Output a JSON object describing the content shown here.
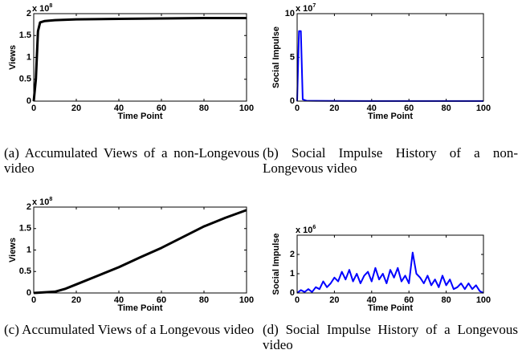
{
  "chart_data": [
    {
      "type": "line",
      "caption": "(a) Accumulated Views of a non-Longevous video",
      "xlabel": "Time Point",
      "ylabel": "Views",
      "y_multiplier": {
        "base": "x 10",
        "exponent": "8"
      },
      "x": [
        0,
        1,
        2,
        3,
        5,
        10,
        20,
        40,
        60,
        80,
        100
      ],
      "series": [
        {
          "color": "#000000",
          "values": [
            0,
            0.5,
            1.6,
            1.8,
            1.83,
            1.85,
            1.87,
            1.88,
            1.89,
            1.9,
            1.9
          ]
        }
      ],
      "xlim": [
        0,
        100
      ],
      "xticks": [
        0,
        20,
        40,
        60,
        80,
        100
      ],
      "ylim": [
        0,
        2
      ],
      "yticks": [
        0,
        0.5,
        1,
        1.5,
        2
      ]
    },
    {
      "type": "line",
      "caption": "(b) Social Impulse History of a non-Longevous video",
      "xlabel": "Time Point",
      "ylabel": "Social Impulse",
      "y_multiplier": {
        "base": "x 10",
        "exponent": "7"
      },
      "x": [
        0,
        1,
        2,
        3,
        5,
        10,
        20,
        40,
        60,
        80,
        100
      ],
      "series": [
        {
          "color": "#0000ff",
          "values": [
            0,
            8,
            8,
            0.2,
            0.05,
            0.03,
            0.02,
            0.01,
            0.01,
            0.01,
            0.01
          ]
        }
      ],
      "xlim": [
        0,
        100
      ],
      "xticks": [
        0,
        20,
        40,
        60,
        80,
        100
      ],
      "ylim": [
        0,
        10
      ],
      "yticks": [
        0,
        5,
        10
      ]
    },
    {
      "type": "line",
      "caption": "(c) Accumulated Views of a Longevous video",
      "xlabel": "Time Point",
      "ylabel": "Views",
      "y_multiplier": {
        "base": "x 10",
        "exponent": "8"
      },
      "x": [
        0,
        10,
        15,
        20,
        30,
        40,
        50,
        60,
        70,
        80,
        90,
        100
      ],
      "series": [
        {
          "color": "#000000",
          "values": [
            0,
            0.03,
            0.1,
            0.2,
            0.4,
            0.6,
            0.83,
            1.05,
            1.3,
            1.55,
            1.75,
            1.93
          ]
        }
      ],
      "xlim": [
        0,
        100
      ],
      "xticks": [
        0,
        20,
        40,
        60,
        80,
        100
      ],
      "ylim": [
        0,
        2
      ],
      "yticks": [
        0,
        0.5,
        1,
        1.5,
        2
      ]
    },
    {
      "type": "line",
      "caption": "(d) Social Impulse History of a Longevous video",
      "xlabel": "Time Point",
      "ylabel": "Social Impulse",
      "y_multiplier": {
        "base": "x 10",
        "exponent": "6"
      },
      "x": [
        0,
        2,
        4,
        6,
        8,
        10,
        12,
        14,
        16,
        18,
        20,
        22,
        24,
        26,
        28,
        30,
        32,
        34,
        36,
        38,
        40,
        42,
        44,
        46,
        48,
        50,
        52,
        54,
        56,
        58,
        60,
        62,
        64,
        66,
        68,
        70,
        72,
        74,
        76,
        78,
        80,
        82,
        84,
        86,
        88,
        90,
        92,
        94,
        96,
        98,
        100
      ],
      "series": [
        {
          "color": "#0000ff",
          "values": [
            0,
            0.15,
            0.05,
            0.2,
            0.05,
            0.3,
            0.2,
            0.6,
            0.3,
            0.5,
            0.8,
            0.6,
            1.1,
            0.7,
            1.2,
            0.6,
            1.0,
            0.5,
            0.9,
            1.1,
            0.6,
            1.3,
            0.7,
            1.0,
            0.5,
            1.2,
            0.8,
            1.3,
            0.6,
            0.9,
            0.5,
            2.1,
            1.0,
            0.8,
            0.5,
            0.9,
            0.4,
            0.7,
            0.3,
            0.9,
            0.4,
            0.7,
            0.2,
            0.3,
            0.5,
            0.2,
            0.5,
            0.2,
            0.4,
            0.1,
            0
          ]
        }
      ],
      "xlim": [
        0,
        100
      ],
      "xticks": [
        0,
        20,
        40,
        60,
        80,
        100
      ],
      "ylim": [
        0,
        3
      ],
      "yticks": [
        0,
        1,
        2
      ]
    }
  ]
}
